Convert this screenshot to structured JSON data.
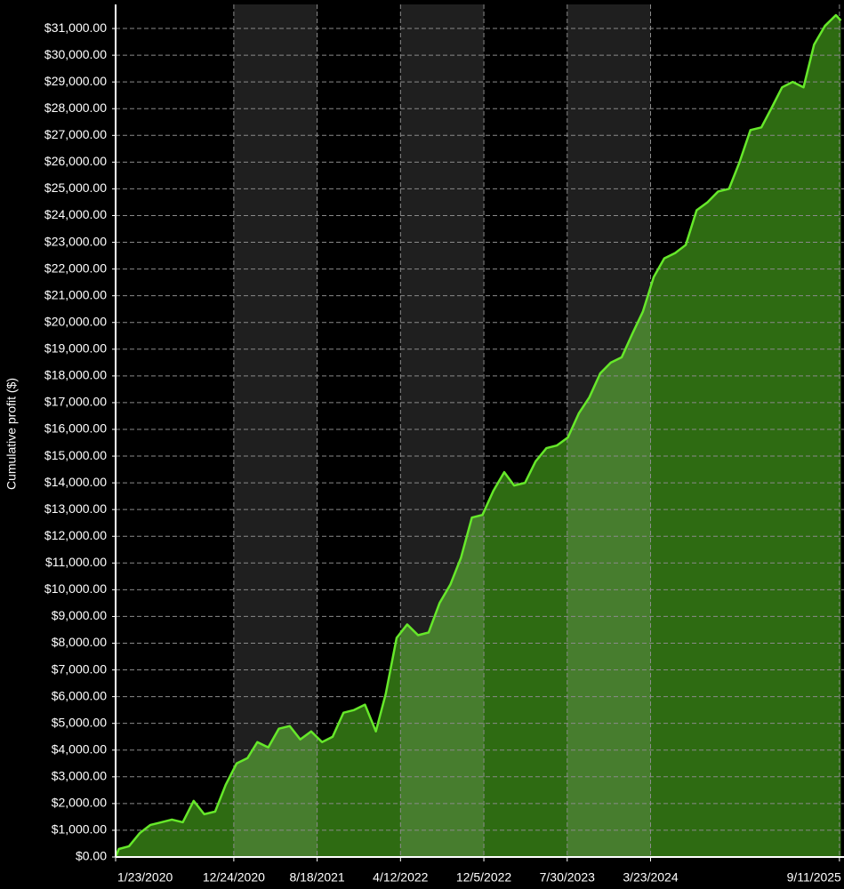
{
  "chart_data": {
    "type": "area",
    "y_label": "Cumulative profit ($)",
    "color": "#66e82a",
    "fill": "#2e6b12",
    "grid": true,
    "x": [
      "2020-01-23",
      "2020-02-01",
      "2020-03-01",
      "2020-04-01",
      "2020-05-01",
      "2020-06-01",
      "2020-07-01",
      "2020-08-01",
      "2020-09-01",
      "2020-10-01",
      "2020-11-01",
      "2020-12-01",
      "2021-01-01",
      "2021-02-01",
      "2021-03-01",
      "2021-04-01",
      "2021-05-01",
      "2021-06-01",
      "2021-07-01",
      "2021-08-01",
      "2021-09-01",
      "2021-10-01",
      "2021-11-01",
      "2021-12-01",
      "2022-01-01",
      "2022-02-01",
      "2022-03-01",
      "2022-04-01",
      "2022-05-01",
      "2022-06-01",
      "2022-07-01",
      "2022-08-01",
      "2022-09-01",
      "2022-10-01",
      "2022-11-01",
      "2022-12-01",
      "2023-01-01",
      "2023-02-01",
      "2023-03-01",
      "2023-04-01",
      "2023-05-01",
      "2023-06-01",
      "2023-07-01",
      "2023-08-01",
      "2023-09-01",
      "2023-10-01",
      "2023-11-01",
      "2023-12-01",
      "2024-01-01",
      "2024-02-01",
      "2024-03-01",
      "2024-04-01",
      "2024-05-01",
      "2024-06-01",
      "2024-07-01",
      "2024-08-01",
      "2024-09-01",
      "2024-10-01",
      "2024-11-01",
      "2024-12-01",
      "2025-01-01",
      "2025-02-01",
      "2025-03-01",
      "2025-04-01",
      "2025-05-01",
      "2025-06-01",
      "2025-07-01",
      "2025-08-01",
      "2025-09-01",
      "2025-09-15"
    ],
    "values": [
      0,
      300,
      400,
      900,
      1200,
      1300,
      1400,
      1300,
      2100,
      1600,
      1700,
      2700,
      3500,
      3700,
      4300,
      4100,
      4800,
      4900,
      4400,
      4700,
      4300,
      4500,
      5400,
      5500,
      5700,
      4700,
      6100,
      8200,
      8700,
      8300,
      8400,
      9500,
      10200,
      11200,
      12700,
      12800,
      13700,
      14400,
      13900,
      14000,
      14800,
      15300,
      15400,
      15700,
      16600,
      17200,
      18100,
      18500,
      18700,
      19600,
      20400,
      21700,
      22400,
      22600,
      22900,
      24200,
      24500,
      24900,
      25000,
      26000,
      27200,
      27300,
      28000,
      28800,
      29000,
      28800,
      30400,
      31100,
      31500,
      31300
    ],
    "xlim": [
      "2020-01-23",
      "2025-09-24"
    ],
    "xticks": [
      {
        "value": "2020-01-23",
        "label": "1/23/2020"
      },
      {
        "value": "2020-12-24",
        "label": "12/24/2020"
      },
      {
        "value": "2021-08-18",
        "label": "8/18/2021"
      },
      {
        "value": "2022-04-12",
        "label": "4/12/2022"
      },
      {
        "value": "2022-12-05",
        "label": "12/5/2022"
      },
      {
        "value": "2023-07-30",
        "label": "7/30/2023"
      },
      {
        "value": "2024-03-23",
        "label": "3/23/2024"
      },
      {
        "value": "2025-09-11",
        "label": "9/11/2025"
      }
    ],
    "ylim": [
      0,
      31900
    ],
    "yticks": [
      {
        "value": 0,
        "label": "$0.00"
      },
      {
        "value": 1000,
        "label": "$1,000.00"
      },
      {
        "value": 2000,
        "label": "$2,000.00"
      },
      {
        "value": 3000,
        "label": "$3,000.00"
      },
      {
        "value": 4000,
        "label": "$4,000.00"
      },
      {
        "value": 5000,
        "label": "$5,000.00"
      },
      {
        "value": 6000,
        "label": "$6,000.00"
      },
      {
        "value": 7000,
        "label": "$7,000.00"
      },
      {
        "value": 8000,
        "label": "$8,000.00"
      },
      {
        "value": 9000,
        "label": "$9,000.00"
      },
      {
        "value": 10000,
        "label": "$10,000.00"
      },
      {
        "value": 11000,
        "label": "$11,000.00"
      },
      {
        "value": 12000,
        "label": "$12,000.00"
      },
      {
        "value": 13000,
        "label": "$13,000.00"
      },
      {
        "value": 14000,
        "label": "$14,000.00"
      },
      {
        "value": 15000,
        "label": "$15,000.00"
      },
      {
        "value": 16000,
        "label": "$16,000.00"
      },
      {
        "value": 17000,
        "label": "$17,000.00"
      },
      {
        "value": 18000,
        "label": "$18,000.00"
      },
      {
        "value": 19000,
        "label": "$19,000.00"
      },
      {
        "value": 20000,
        "label": "$20,000.00"
      },
      {
        "value": 21000,
        "label": "$21,000.00"
      },
      {
        "value": 22000,
        "label": "$22,000.00"
      },
      {
        "value": 23000,
        "label": "$23,000.00"
      },
      {
        "value": 24000,
        "label": "$24,000.00"
      },
      {
        "value": 25000,
        "label": "$25,000.00"
      },
      {
        "value": 26000,
        "label": "$26,000.00"
      },
      {
        "value": 27000,
        "label": "$27,000.00"
      },
      {
        "value": 28000,
        "label": "$28,000.00"
      },
      {
        "value": 29000,
        "label": "$29,000.00"
      },
      {
        "value": 30000,
        "label": "$30,000.00"
      },
      {
        "value": 31000,
        "label": "$31,000.00"
      }
    ]
  }
}
